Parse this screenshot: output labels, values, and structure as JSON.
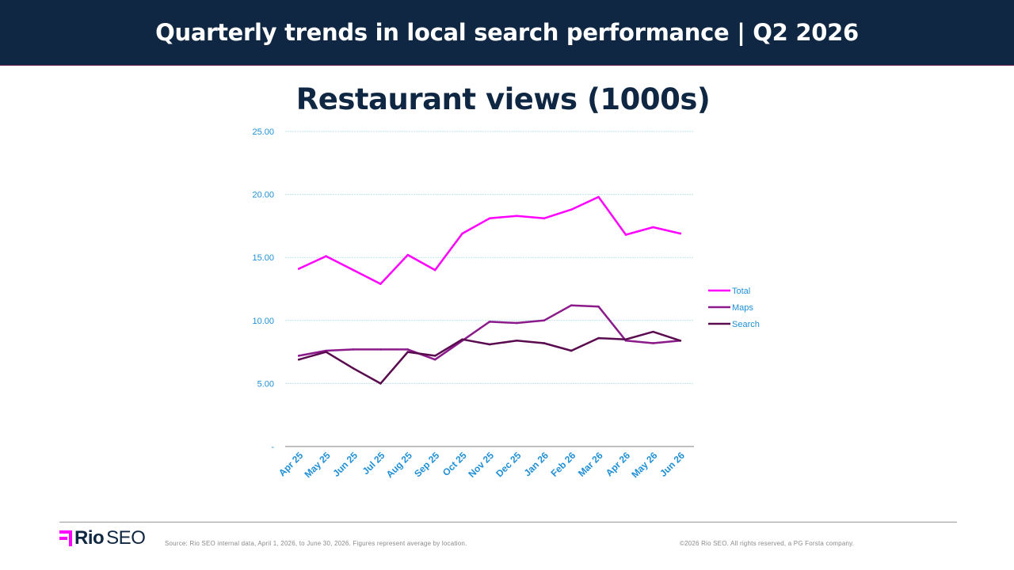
{
  "header": {
    "title": "Quarterly trends in local search performance  |  Q2 2026"
  },
  "footer": {
    "brand_bold": "Rio",
    "brand_light": "SEO",
    "source": "Source: Rio SEO internal data, April 1, 2026, to June 30, 2026. Figures represent average by location.",
    "copyright": "©2026 Rio SEO. All rights reserved, a PG Forsta company."
  },
  "colors": {
    "header_bg": "#0f2742",
    "total": "#ff00ff",
    "maps": "#8b1a8b",
    "search": "#5a0a4e",
    "axis_text": "#1f8fd6",
    "logo_accent": "#ff00ff"
  },
  "chart_data": {
    "type": "line",
    "title": "Restaurant views (1000s)",
    "categories": [
      "Apr 25",
      "May 25",
      "Jun 25",
      "Jul 25",
      "Aug 25",
      "Sep 25",
      "Oct 25",
      "Nov 25",
      "Dec 25",
      "Jan 26",
      "Feb 26",
      "Mar 26",
      "Apr 26",
      "May 26",
      "Jun 26"
    ],
    "ylim": [
      0,
      25
    ],
    "yticks": [
      "-",
      "5.00",
      "10.00",
      "15.00",
      "20.00",
      "25.00"
    ],
    "grid": true,
    "legend_position": "right",
    "series": [
      {
        "name": "Total",
        "color": "#ff00ff",
        "values": [
          14.1,
          15.1,
          14.0,
          12.9,
          15.2,
          14.0,
          16.9,
          18.1,
          18.3,
          18.1,
          18.8,
          19.8,
          16.8,
          17.4,
          16.9
        ]
      },
      {
        "name": "Maps",
        "color": "#8b1a8b",
        "values": [
          7.2,
          7.6,
          7.7,
          7.7,
          7.7,
          6.9,
          8.4,
          9.9,
          9.8,
          10.0,
          11.2,
          11.1,
          8.4,
          8.2,
          8.4
        ]
      },
      {
        "name": "Search",
        "color": "#5a0a4e",
        "values": [
          6.9,
          7.5,
          6.2,
          5.0,
          7.5,
          7.2,
          8.5,
          8.1,
          8.4,
          8.2,
          7.6,
          8.6,
          8.5,
          9.1,
          8.4
        ]
      }
    ]
  }
}
